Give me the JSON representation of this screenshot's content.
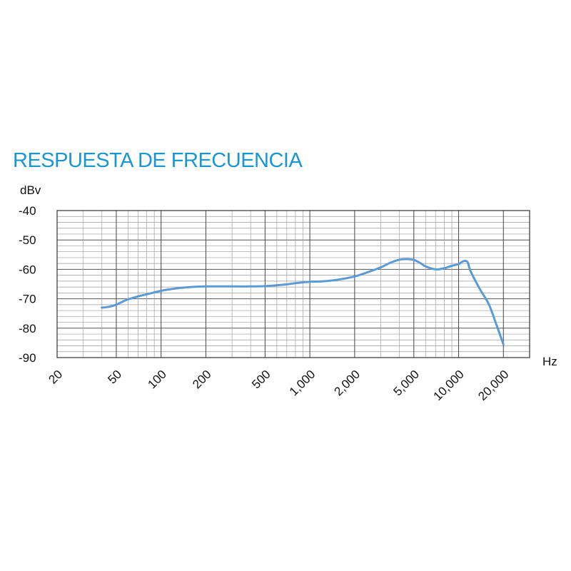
{
  "chart_data": {
    "type": "line",
    "title": "RESPUESTA DE FRECUENCIA",
    "ylabel": "dBv",
    "xlabel": "Hz",
    "x_scale": "log",
    "xlim": [
      20,
      30000
    ],
    "ylim": [
      -90,
      -40
    ],
    "x_ticks": [
      {
        "value": 20,
        "label": "20"
      },
      {
        "value": 50,
        "label": "50"
      },
      {
        "value": 100,
        "label": "100"
      },
      {
        "value": 200,
        "label": "200"
      },
      {
        "value": 500,
        "label": "500"
      },
      {
        "value": 1000,
        "label": "1,000"
      },
      {
        "value": 2000,
        "label": "2,000"
      },
      {
        "value": 5000,
        "label": "5,000"
      },
      {
        "value": 10000,
        "label": "10,000"
      },
      {
        "value": 20000,
        "label": "20,000"
      }
    ],
    "y_ticks": [
      {
        "value": -40,
        "label": "-40"
      },
      {
        "value": -50,
        "label": "-50"
      },
      {
        "value": -60,
        "label": "-60"
      },
      {
        "value": -70,
        "label": "-70"
      },
      {
        "value": -80,
        "label": "-80"
      },
      {
        "value": -90,
        "label": "-90"
      }
    ],
    "grid": true,
    "series": [
      {
        "color": "#5b9bd5",
        "x": [
          40,
          45,
          50,
          55,
          60,
          70,
          80,
          100,
          130,
          160,
          200,
          300,
          400,
          500,
          600,
          700,
          800,
          1000,
          1200,
          1500,
          2000,
          2500,
          3000,
          3500,
          4000,
          4500,
          5000,
          5500,
          6000,
          7000,
          8000,
          9000,
          10000,
          10500,
          11000,
          11500,
          12000,
          13000,
          14000,
          16000,
          18000,
          20000
        ],
        "y": [
          -73,
          -72.7,
          -72,
          -71,
          -70.2,
          -69.2,
          -68.5,
          -67.3,
          -66.4,
          -66,
          -65.8,
          -65.8,
          -65.8,
          -65.7,
          -65.4,
          -65.1,
          -64.7,
          -64.2,
          -64.1,
          -63.6,
          -62.4,
          -60.8,
          -59.3,
          -57.7,
          -56.7,
          -56.5,
          -56.8,
          -57.8,
          -59,
          -60,
          -59.6,
          -58.8,
          -58.2,
          -57.5,
          -57.1,
          -57.6,
          -60.5,
          -64,
          -67,
          -72,
          -79,
          -85.5
        ]
      }
    ],
    "title_color": "#1a96d2"
  }
}
